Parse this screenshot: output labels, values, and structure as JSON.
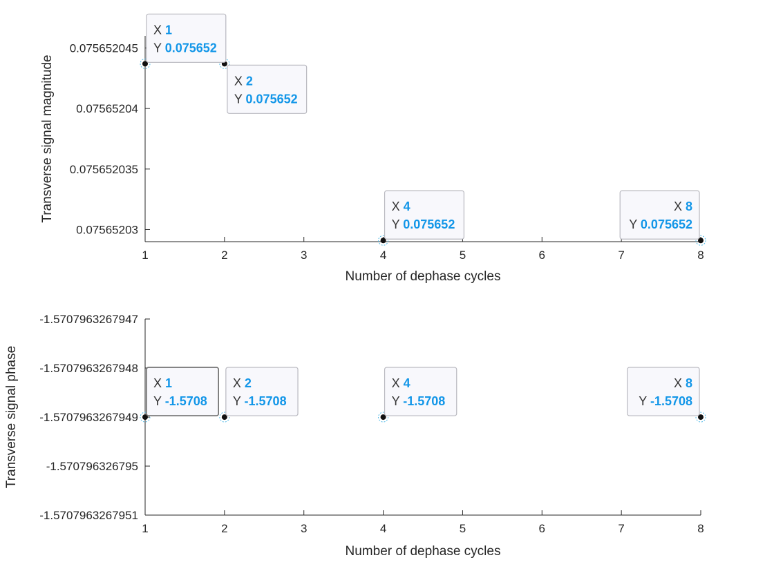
{
  "chart_data": [
    {
      "type": "scatter",
      "xlabel": "Number of dephase cycles",
      "ylabel": "Transverse signal magnitude",
      "xlim": [
        1,
        8
      ],
      "ylim": [
        0.075652029,
        0.075652046
      ],
      "xticks": [
        1,
        2,
        3,
        4,
        5,
        6,
        7,
        8
      ],
      "xtick_labels": [
        "1",
        "2",
        "3",
        "4",
        "5",
        "6",
        "7",
        "8"
      ],
      "yticks": [
        0.07565203,
        0.075652035,
        0.07565204,
        0.075652045
      ],
      "ytick_labels": [
        "0.07565203",
        "0.075652035",
        "0.07565204",
        "0.075652045"
      ],
      "grid": false,
      "series": [
        {
          "x": [
            1,
            2,
            4,
            8
          ],
          "y": [
            0.0756520437,
            0.0756520437,
            0.0756520291,
            0.0756520291
          ]
        }
      ],
      "datatips": [
        {
          "x": 1,
          "y": 0.0756520437,
          "x_label": "1",
          "y_label": "0.075652",
          "placement": "above-right"
        },
        {
          "x": 2,
          "y": 0.0756520437,
          "x_label": "2",
          "y_label": "0.075652",
          "placement": "below-right"
        },
        {
          "x": 4,
          "y": 0.0756520291,
          "x_label": "4",
          "y_label": "0.075652",
          "placement": "above-right"
        },
        {
          "x": 8,
          "y": 0.0756520291,
          "x_label": "8",
          "y_label": "0.075652",
          "placement": "above-left"
        }
      ]
    },
    {
      "type": "scatter",
      "xlabel": "Number of dephase cycles",
      "ylabel": "Transverse signal phase",
      "xlim": [
        1,
        8
      ],
      "ylim": [
        -1.5707963267951,
        -1.5707963267947
      ],
      "xticks": [
        1,
        2,
        3,
        4,
        5,
        6,
        7,
        8
      ],
      "xtick_labels": [
        "1",
        "2",
        "3",
        "4",
        "5",
        "6",
        "7",
        "8"
      ],
      "yticks": [
        -1.5707963267947,
        -1.5707963267948,
        -1.5707963267949,
        -1.570796326795,
        -1.5707963267951
      ],
      "ytick_labels": [
        "-1.5707963267947",
        "-1.5707963267948",
        "-1.5707963267949",
        "-1.570796326795",
        "-1.5707963267951"
      ],
      "grid": false,
      "series": [
        {
          "x": [
            1,
            2,
            4,
            8
          ],
          "y": [
            -1.5707963267949,
            -1.5707963267949,
            -1.5707963267949,
            -1.5707963267949
          ]
        }
      ],
      "datatips": [
        {
          "x": 1,
          "y": -1.5707963267949,
          "x_label": "1",
          "y_label": "-1.5708",
          "placement": "above-right",
          "selected": true
        },
        {
          "x": 2,
          "y": -1.5707963267949,
          "x_label": "2",
          "y_label": "-1.5708",
          "placement": "above-right"
        },
        {
          "x": 4,
          "y": -1.5707963267949,
          "x_label": "4",
          "y_label": "-1.5708",
          "placement": "above-right"
        },
        {
          "x": 8,
          "y": -1.5707963267949,
          "x_label": "8",
          "y_label": "-1.5708",
          "placement": "above-left"
        }
      ]
    }
  ],
  "datatip_keys": {
    "x": "X",
    "y": "Y"
  },
  "colors": {
    "axis": "#262626",
    "marker": "#111111",
    "datatip_value": "#1296e8",
    "datatip_background": "#f8f8fc"
  }
}
